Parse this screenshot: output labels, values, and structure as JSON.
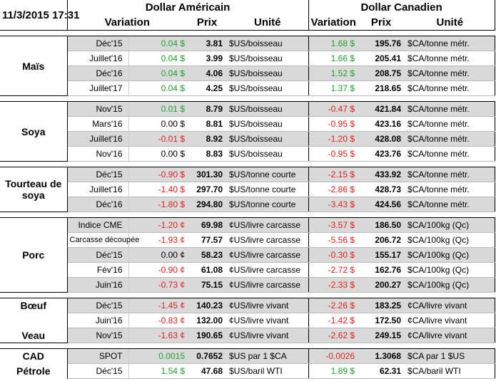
{
  "header": {
    "datetime": "11/3/2015 17:31",
    "usd": "Dollar Américain",
    "cad": "Dollar Canadien",
    "columns": [
      "Variation",
      "Prix",
      "Unité",
      "Variation",
      "Prix",
      "Unité"
    ]
  },
  "groups": [
    [
      {
        "label": "Maïs",
        "rows": [
          [
            "Déc'15",
            "0.04 $",
            "3.81",
            "$US/boisseau",
            "1.68 $",
            "195.76",
            "$CA/tonne métr."
          ],
          [
            "Juillet'16",
            "0.04 $",
            "3.99",
            "$US/boisseau",
            "1.66 $",
            "205.41",
            "$CA/tonne métr."
          ],
          [
            "Déc'16",
            "0.04 $",
            "4.06",
            "$US/boisseau",
            "1.52 $",
            "208.75",
            "$CA/tonne métr."
          ],
          [
            "Juillet'17",
            "0.04 $",
            "4.25",
            "$US/boisseau",
            "1.37 $",
            "218.65",
            "$CA/tonne métr."
          ]
        ]
      }
    ],
    [
      {
        "label": "Soya",
        "rows": [
          [
            "Nov'15",
            "0.01 $",
            "8.79",
            "$US/boisseau",
            "-0.47 $",
            "421.84",
            "$CA/tonne métr."
          ],
          [
            "Mars'16",
            "0.00 $",
            "8.81",
            "$US/boisseau",
            "-0.95 $",
            "423.16",
            "$CA/tonne métr."
          ],
          [
            "Juillet'16",
            "-0.01 $",
            "8.92",
            "$US/boisseau",
            "-1.20 $",
            "428.08",
            "$CA/tonne métr."
          ],
          [
            "Nov'16",
            "0.00 $",
            "8.83",
            "$US/boisseau",
            "-0.95 $",
            "423.76",
            "$CA/tonne métr."
          ]
        ]
      }
    ],
    [
      {
        "label": "Tourteau de soya",
        "rows": [
          [
            "Déc'15",
            "-0.90 $",
            "301.30",
            "$US/tonne courte",
            "-2.15 $",
            "433.92",
            "$CA/tonne métr."
          ],
          [
            "Juillet'16",
            "-1.40 $",
            "297.70",
            "$US/tonne courte",
            "-2.86 $",
            "428.73",
            "$CA/tonne métr."
          ],
          [
            "Déc'16",
            "-1.80 $",
            "294.80",
            "$US/tonne courte",
            "-3.43 $",
            "424.56",
            "$CA/tonne métr."
          ]
        ]
      }
    ],
    [
      {
        "label": "Porc",
        "rows": [
          [
            "Indice CME",
            "-1.20 ¢",
            "69.98",
            "¢US/livre carcasse",
            "-3.57 $",
            "186.50",
            "$CA/100kg (Qc)"
          ],
          [
            "Carcasse découpée",
            "-1.93 ¢",
            "77.57",
            "¢US/livre carcasse",
            "-5.56 $",
            "206.72",
            "$CA/100kg (Qc)"
          ],
          [
            "Déc'15",
            "0.00 ¢",
            "58.23",
            "¢US/livre carcasse",
            "-0.30 $",
            "155.17",
            "$CA/100kg (Qc)"
          ],
          [
            "Fév'16",
            "-0.90 ¢",
            "61.08",
            "¢US/livre carcasse",
            "-2.72 $",
            "162.76",
            "$CA/100kg (Qc)"
          ],
          [
            "Juin'16",
            "-0.73 ¢",
            "75.15",
            "¢US/livre carcasse",
            "-2.33 $",
            "200.27",
            "$CA/100kg (Qc)"
          ]
        ]
      }
    ],
    [
      {
        "label": "Bœuf",
        "rows": [
          [
            "Déc'15",
            "-1.45 ¢",
            "140.23",
            "¢US/livre vivant",
            "-2.26 $",
            "183.25",
            "¢CA/livre vivant"
          ]
        ]
      },
      {
        "rows": [
          [
            "Juin'16",
            "-0.83 ¢",
            "132.00",
            "¢US/livre vivant",
            "-1.42 $",
            "172.50",
            "¢CA/livre vivant"
          ]
        ]
      },
      {
        "label": "Veau",
        "rows": [
          [
            "Nov'15",
            "-1.63 ¢",
            "190.65",
            "¢US/livre vivant",
            "-2.62 $",
            "249.15",
            "¢CA/livre vivant"
          ]
        ]
      }
    ],
    [
      {
        "label": "CAD",
        "rows": [
          [
            "SPOT",
            "0.0015",
            "0.7652",
            "$US par 1 $CA",
            "-0.0026",
            "1.3068",
            "$CA par 1 $US"
          ]
        ]
      },
      {
        "label": "Pétrole",
        "rows": [
          [
            "Déc'15",
            "1.54 $",
            "47.68",
            "$US/baril WTI",
            "1.89 $",
            "62.31",
            "$CA/baril WTI"
          ]
        ]
      }
    ]
  ]
}
